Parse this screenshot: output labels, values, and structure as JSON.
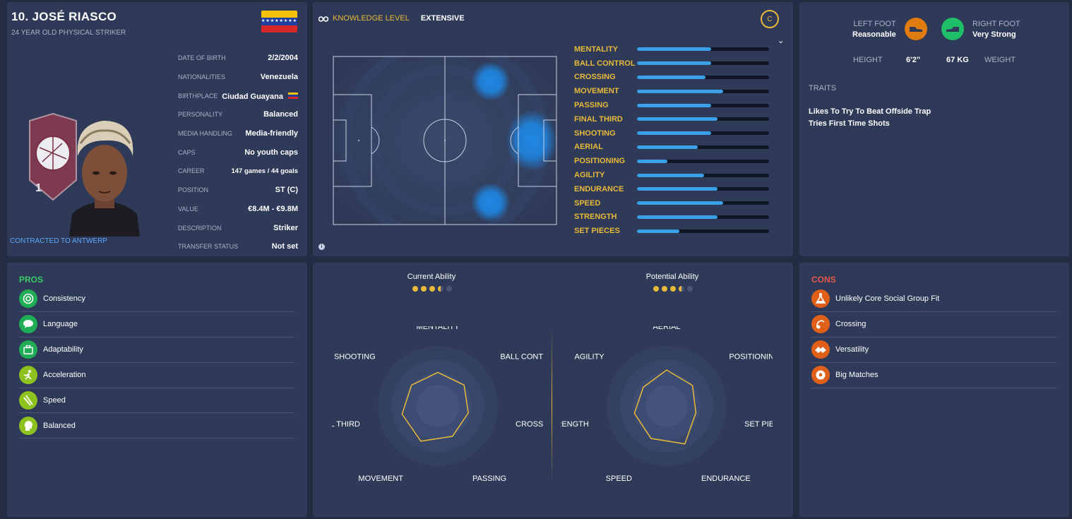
{
  "profile": {
    "name": "10. JOSÉ RIASCO",
    "subtitle": "24 YEAR OLD PHYSICAL STRIKER",
    "contracted": "CONTRACTED TO ANTWERP",
    "info": [
      {
        "key": "DATE OF BIRTH",
        "value": "2/2/2004"
      },
      {
        "key": "NATIONALITIES",
        "value": "Venezuela"
      },
      {
        "key": "BIRTHPLACE",
        "value": "Ciudad Guayana"
      },
      {
        "key": "PERSONALITY",
        "value": "Balanced"
      },
      {
        "key": "MEDIA HANDLING",
        "value": "Media-friendly"
      },
      {
        "key": "CAPS",
        "value": "No youth caps"
      },
      {
        "key": "CAREER",
        "value": "147  games /  44  goals"
      },
      {
        "key": "POSITION",
        "value": "ST (C)"
      },
      {
        "key": "VALUE",
        "value": "€8.4M - €9.8M"
      },
      {
        "key": "DESCRIPTION",
        "value": "Striker"
      },
      {
        "key": "TRANSFER STATUS",
        "value": "Not set"
      }
    ],
    "badge_text": "1",
    "icon_names": [
      "venezuela-flag-icon",
      "club-badge-icon",
      "player-portrait"
    ]
  },
  "attributes": {
    "knowledge_label": "KNOWLEDGE LEVEL",
    "knowledge_value": "EXTENSIVE",
    "badge": "C",
    "items": [
      {
        "name": "MENTALITY",
        "level": 0.56
      },
      {
        "name": "BALL CONTROL",
        "level": 0.56
      },
      {
        "name": "CROSSING",
        "level": 0.52
      },
      {
        "name": "MOVEMENT",
        "level": 0.65
      },
      {
        "name": "PASSING",
        "level": 0.56
      },
      {
        "name": "FINAL THIRD",
        "level": 0.61
      },
      {
        "name": "SHOOTING",
        "level": 0.56
      },
      {
        "name": "AERIAL",
        "level": 0.46
      },
      {
        "name": "POSITIONING",
        "level": 0.23
      },
      {
        "name": "AGILITY",
        "level": 0.51
      },
      {
        "name": "ENDURANCE",
        "level": 0.61
      },
      {
        "name": "SPEED",
        "level": 0.65
      },
      {
        "name": "STRENGTH",
        "level": 0.61
      },
      {
        "name": "SET PIECES",
        "level": 0.32
      }
    ],
    "colors": {
      "accent": "#e8b93a",
      "bar": "#3aa0e8",
      "heat": "#1e88e5"
    }
  },
  "physical": {
    "left_foot_label": "LEFT FOOT",
    "left_foot_value": "Reasonable",
    "right_foot_label": "RIGHT FOOT",
    "right_foot_value": "Very Strong",
    "height_label": "HEIGHT",
    "height_value": "6'2\"",
    "weight_value": "67 KG",
    "weight_label": "WEIGHT",
    "traits_label": "TRAITS",
    "traits": [
      "Likes To Try To Beat Offside Trap",
      "Tries First Time Shots"
    ]
  },
  "pros": {
    "title": "PROS",
    "color": "#3ec96a",
    "items": [
      {
        "label": "Consistency",
        "icon": "target-icon"
      },
      {
        "label": "Language",
        "icon": "speech-bubble-icon"
      },
      {
        "label": "Adaptability",
        "icon": "suitcase-icon"
      },
      {
        "label": "Acceleration",
        "icon": "sprinter-icon"
      },
      {
        "label": "Speed",
        "icon": "lightning-icon"
      },
      {
        "label": "Balanced",
        "icon": "head-icon"
      }
    ]
  },
  "ability": {
    "current_label": "Current Ability",
    "potential_label": "Potential Ability",
    "current_stars": 3.5,
    "potential_stars": 3.5,
    "current_radar": {
      "axes": [
        "MENTALITY",
        "BALL CONTROL",
        "CROSSING",
        "PASSING",
        "MOVEMENT",
        "FINAL THIRD",
        "SHOOTING"
      ],
      "values": [
        0.56,
        0.56,
        0.52,
        0.56,
        0.65,
        0.61,
        0.56
      ]
    },
    "potential_radar": {
      "axes": [
        "AERIAL",
        "POSITIONING",
        "SET PIECES",
        "ENDURANCE",
        "SPEED",
        "STRENGTH",
        "AGILITY"
      ],
      "values": [
        0.6,
        0.55,
        0.5,
        0.7,
        0.6,
        0.55,
        0.5
      ]
    }
  },
  "cons": {
    "title": "CONS",
    "color": "#e5584e",
    "items": [
      {
        "label": "Unlikely Core Social Group Fit",
        "icon": "flask-icon"
      },
      {
        "label": "Crossing",
        "icon": "cross-ball-icon"
      },
      {
        "label": "Versatility",
        "icon": "handshake-icon"
      },
      {
        "label": "Big Matches",
        "icon": "football-icon"
      }
    ]
  }
}
